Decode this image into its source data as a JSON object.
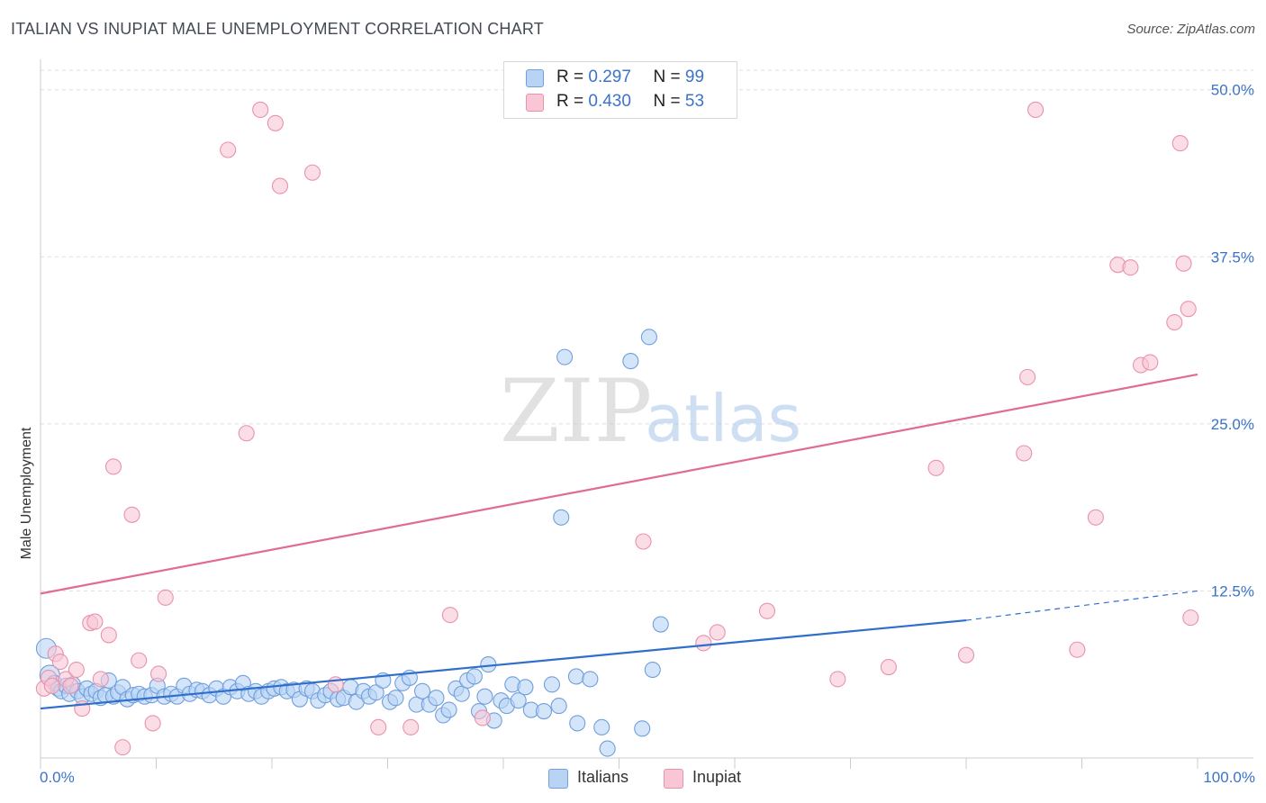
{
  "title": "ITALIAN VS INUPIAT MALE UNEMPLOYMENT CORRELATION CHART",
  "source": "Source: ZipAtlas.com",
  "watermark": {
    "zip": "ZIP",
    "atlas": "atlas"
  },
  "legend_top": [
    {
      "r_label": "R =",
      "r_value": "0.297",
      "n_label": "N =",
      "n_value": "99"
    },
    {
      "r_label": "R =",
      "r_value": "0.430",
      "n_label": "N =",
      "n_value": "53"
    }
  ],
  "colors": {
    "italians_fill": "#b9d3f5",
    "italians_stroke": "#6f9fdc",
    "italians_line": "#2f6fcb",
    "inupiat_fill": "#f9c6d5",
    "inupiat_stroke": "#e892ae",
    "inupiat_line": "#e06b94",
    "tick_text": "#3b73c9",
    "grid": "#dddddd"
  },
  "chart_data": {
    "type": "scatter",
    "title": "ITALIAN VS INUPIAT MALE UNEMPLOYMENT CORRELATION CHART",
    "xlabel": "",
    "ylabel": "Male Unemployment",
    "xlim": [
      0,
      100
    ],
    "ylim": [
      0,
      52
    ],
    "x_tick_labels": [
      "0.0%",
      "100.0%"
    ],
    "y_ticks": [
      12.5,
      25.0,
      37.5,
      50.0
    ],
    "y_tick_labels": [
      "12.5%",
      "25.0%",
      "37.5%",
      "50.0%"
    ],
    "legend_position": "bottom",
    "series": [
      {
        "name": "Italians",
        "r": 0.297,
        "n": 99,
        "trend": {
          "x0": 0,
          "y0": 3.7,
          "x1": 80,
          "y1": 10.3,
          "dash_to": 100,
          "dash_y": 12.5
        },
        "points": [
          [
            0.5,
            8.2
          ],
          [
            0.8,
            6.2
          ],
          [
            1.2,
            5.6
          ],
          [
            1.5,
            5.2
          ],
          [
            1.8,
            5.0
          ],
          [
            2.2,
            5.4
          ],
          [
            2.5,
            4.8
          ],
          [
            2.8,
            5.5
          ],
          [
            3.2,
            5.0
          ],
          [
            3.6,
            4.6
          ],
          [
            4.0,
            5.2
          ],
          [
            4.4,
            4.8
          ],
          [
            4.8,
            5.0
          ],
          [
            5.2,
            4.5
          ],
          [
            5.6,
            4.7
          ],
          [
            5.9,
            5.8
          ],
          [
            6.3,
            4.6
          ],
          [
            6.7,
            4.9
          ],
          [
            7.1,
            5.3
          ],
          [
            7.5,
            4.4
          ],
          [
            8.0,
            4.7
          ],
          [
            8.5,
            4.8
          ],
          [
            9.0,
            4.6
          ],
          [
            9.6,
            4.7
          ],
          [
            10.1,
            5.4
          ],
          [
            10.7,
            4.6
          ],
          [
            11.3,
            4.8
          ],
          [
            11.8,
            4.6
          ],
          [
            12.4,
            5.4
          ],
          [
            12.9,
            4.8
          ],
          [
            13.5,
            5.1
          ],
          [
            14.0,
            5.0
          ],
          [
            14.6,
            4.7
          ],
          [
            15.2,
            5.2
          ],
          [
            15.8,
            4.6
          ],
          [
            16.4,
            5.3
          ],
          [
            17.0,
            5.0
          ],
          [
            17.5,
            5.6
          ],
          [
            18.0,
            4.8
          ],
          [
            18.6,
            5.0
          ],
          [
            19.1,
            4.6
          ],
          [
            19.7,
            5.0
          ],
          [
            20.2,
            5.2
          ],
          [
            20.8,
            5.3
          ],
          [
            21.3,
            5.0
          ],
          [
            21.9,
            5.1
          ],
          [
            22.4,
            4.4
          ],
          [
            23.0,
            5.2
          ],
          [
            23.5,
            5.0
          ],
          [
            24.0,
            4.3
          ],
          [
            24.6,
            4.7
          ],
          [
            25.1,
            5.0
          ],
          [
            25.7,
            4.4
          ],
          [
            26.2,
            4.5
          ],
          [
            26.8,
            5.3
          ],
          [
            27.3,
            4.2
          ],
          [
            27.9,
            5.0
          ],
          [
            28.4,
            4.6
          ],
          [
            29.0,
            4.9
          ],
          [
            29.6,
            5.8
          ],
          [
            30.2,
            4.2
          ],
          [
            30.7,
            4.5
          ],
          [
            31.3,
            5.6
          ],
          [
            31.9,
            6.0
          ],
          [
            32.5,
            4.0
          ],
          [
            33.0,
            5.0
          ],
          [
            33.6,
            4.0
          ],
          [
            34.2,
            4.5
          ],
          [
            34.8,
            3.2
          ],
          [
            35.3,
            3.6
          ],
          [
            35.9,
            5.2
          ],
          [
            36.4,
            4.8
          ],
          [
            36.9,
            5.8
          ],
          [
            37.5,
            6.1
          ],
          [
            37.9,
            3.5
          ],
          [
            38.4,
            4.6
          ],
          [
            38.7,
            7.0
          ],
          [
            39.2,
            2.8
          ],
          [
            39.8,
            4.3
          ],
          [
            40.3,
            3.9
          ],
          [
            40.8,
            5.5
          ],
          [
            41.3,
            4.3
          ],
          [
            41.9,
            5.3
          ],
          [
            42.4,
            3.6
          ],
          [
            43.5,
            3.5
          ],
          [
            44.2,
            5.5
          ],
          [
            44.8,
            3.9
          ],
          [
            45.3,
            30.0
          ],
          [
            45.0,
            18.0
          ],
          [
            46.4,
            2.6
          ],
          [
            46.3,
            6.1
          ],
          [
            47.5,
            5.9
          ],
          [
            48.5,
            2.3
          ],
          [
            49.0,
            0.7
          ],
          [
            51.0,
            29.7
          ],
          [
            52.0,
            2.2
          ],
          [
            52.6,
            31.5
          ],
          [
            52.9,
            6.6
          ],
          [
            53.6,
            10.0
          ]
        ]
      },
      {
        "name": "Inupiat",
        "r": 0.43,
        "n": 53,
        "trend": {
          "x0": 0,
          "y0": 12.3,
          "x1": 100,
          "y1": 28.7
        },
        "points": [
          [
            0.3,
            5.2
          ],
          [
            0.7,
            6.0
          ],
          [
            1.0,
            5.4
          ],
          [
            1.3,
            7.8
          ],
          [
            1.7,
            7.2
          ],
          [
            2.2,
            5.9
          ],
          [
            2.6,
            5.4
          ],
          [
            3.1,
            6.6
          ],
          [
            3.6,
            3.7
          ],
          [
            4.3,
            10.1
          ],
          [
            4.7,
            10.2
          ],
          [
            5.2,
            5.9
          ],
          [
            5.9,
            9.2
          ],
          [
            6.3,
            21.8
          ],
          [
            7.1,
            0.8
          ],
          [
            7.9,
            18.2
          ],
          [
            8.5,
            7.3
          ],
          [
            9.7,
            2.6
          ],
          [
            10.2,
            6.3
          ],
          [
            10.8,
            12.0
          ],
          [
            16.2,
            45.5
          ],
          [
            17.8,
            24.3
          ],
          [
            19.0,
            48.5
          ],
          [
            20.3,
            47.5
          ],
          [
            20.7,
            42.8
          ],
          [
            23.5,
            43.8
          ],
          [
            25.5,
            5.5
          ],
          [
            29.2,
            2.3
          ],
          [
            32.0,
            2.3
          ],
          [
            35.4,
            10.7
          ],
          [
            38.2,
            3.0
          ],
          [
            52.1,
            16.2
          ],
          [
            57.3,
            8.6
          ],
          [
            58.5,
            9.4
          ],
          [
            62.8,
            11.0
          ],
          [
            68.9,
            5.9
          ],
          [
            73.3,
            6.8
          ],
          [
            77.4,
            21.7
          ],
          [
            80.0,
            7.7
          ],
          [
            85.0,
            22.8
          ],
          [
            85.3,
            28.5
          ],
          [
            86.0,
            48.5
          ],
          [
            89.6,
            8.1
          ],
          [
            91.2,
            18.0
          ],
          [
            93.1,
            36.9
          ],
          [
            94.2,
            36.7
          ],
          [
            95.1,
            29.4
          ],
          [
            95.9,
            29.6
          ],
          [
            98.0,
            32.6
          ],
          [
            98.8,
            37.0
          ],
          [
            99.2,
            33.6
          ],
          [
            99.4,
            10.5
          ],
          [
            98.5,
            46.0
          ]
        ]
      }
    ]
  },
  "legend_bottom": [
    {
      "label": "Italians"
    },
    {
      "label": "Inupiat"
    }
  ]
}
